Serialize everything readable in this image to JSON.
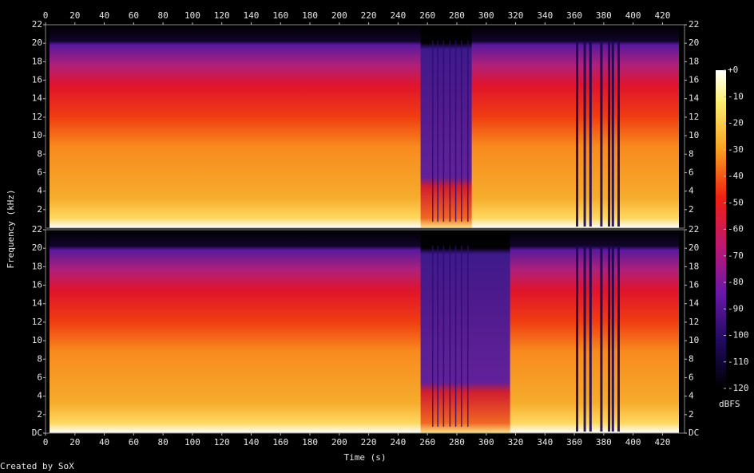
{
  "chart_data": [
    {
      "type": "spectrogram",
      "xlim": [
        0,
        435
      ],
      "xticks": [
        0,
        20,
        40,
        60,
        80,
        100,
        120,
        140,
        160,
        180,
        200,
        220,
        240,
        260,
        280,
        300,
        320,
        340,
        360,
        380,
        400,
        420
      ],
      "ylim": [
        0,
        22
      ],
      "yticks": [
        2,
        4,
        6,
        8,
        10,
        12,
        14,
        16,
        18,
        20,
        22
      ]
    },
    {
      "type": "spectrogram",
      "xlabel": "Time (s)",
      "xlim": [
        0,
        435
      ],
      "xticks": [
        0,
        20,
        40,
        60,
        80,
        100,
        120,
        140,
        160,
        180,
        200,
        220,
        240,
        260,
        280,
        300,
        320,
        340,
        360,
        380,
        400,
        420
      ],
      "ylim": [
        0,
        22
      ],
      "yticks": [
        {
          "value": 0,
          "label": "DC"
        },
        2,
        4,
        6,
        8,
        10,
        12,
        14,
        16,
        18,
        20,
        22
      ]
    }
  ],
  "ylabel": "Frequency (kHz)",
  "colorbar": {
    "label": "dBFS",
    "lim": [
      -120,
      0
    ],
    "ticks": [
      {
        "value": 0,
        "label": "+0"
      },
      -10,
      -20,
      -30,
      -40,
      -50,
      -60,
      -70,
      -80,
      -90,
      -100,
      -110,
      -120
    ]
  },
  "credit": "Created by SoX"
}
